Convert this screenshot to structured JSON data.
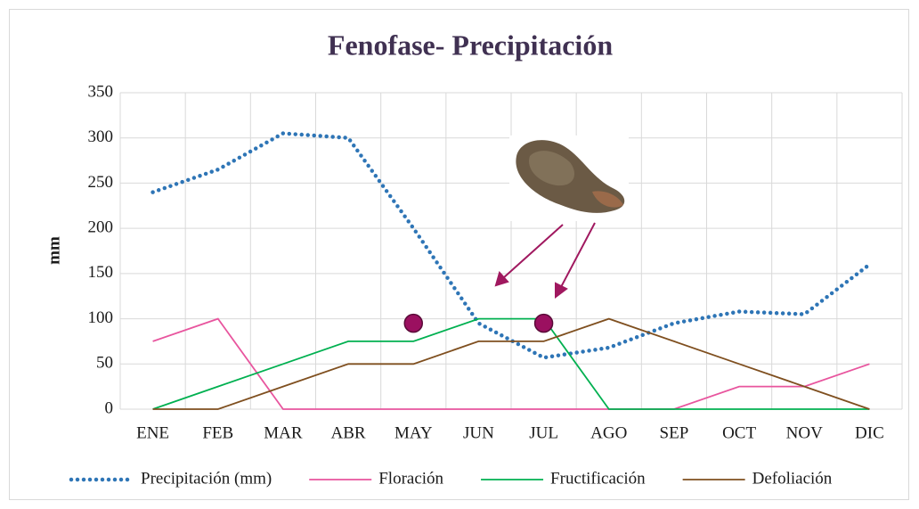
{
  "chart_data": {
    "type": "line",
    "title": "Fenofase- Precipitación",
    "y_label": "mm",
    "categories": [
      "ENE",
      "FEB",
      "MAR",
      "ABR",
      "MAY",
      "JUN",
      "JUL",
      "AGO",
      "SEP",
      "OCT",
      "NOV",
      "DIC"
    ],
    "series": [
      {
        "name": "Precipitación (mm)",
        "color": "#2e75b6",
        "style": "dotted",
        "values": [
          240,
          265,
          305,
          300,
          200,
          95,
          57,
          68,
          95,
          108,
          105,
          160
        ]
      },
      {
        "name": "Floración",
        "color": "#e8559e",
        "style": "solid",
        "values": [
          75,
          100,
          0,
          0,
          0,
          0,
          0,
          0,
          0,
          25,
          25,
          50
        ]
      },
      {
        "name": "Fructificación",
        "color": "#00b050",
        "style": "solid",
        "values": [
          0,
          25,
          50,
          75,
          75,
          100,
          100,
          0,
          0,
          0,
          0,
          0
        ]
      },
      {
        "name": "Defoliación",
        "color": "#7f4f1f",
        "style": "solid",
        "values": [
          0,
          0,
          25,
          50,
          50,
          75,
          75,
          100,
          75,
          50,
          25,
          0
        ]
      }
    ],
    "highlight_points": {
      "color": "#9b1060",
      "x": [
        "MAY",
        "JUL"
      ],
      "y": [
        95,
        95
      ]
    },
    "ylim": [
      0,
      350
    ],
    "yticks": [
      0,
      50,
      100,
      150,
      200,
      250,
      300,
      350
    ],
    "grid": true,
    "legend": "bottom"
  }
}
